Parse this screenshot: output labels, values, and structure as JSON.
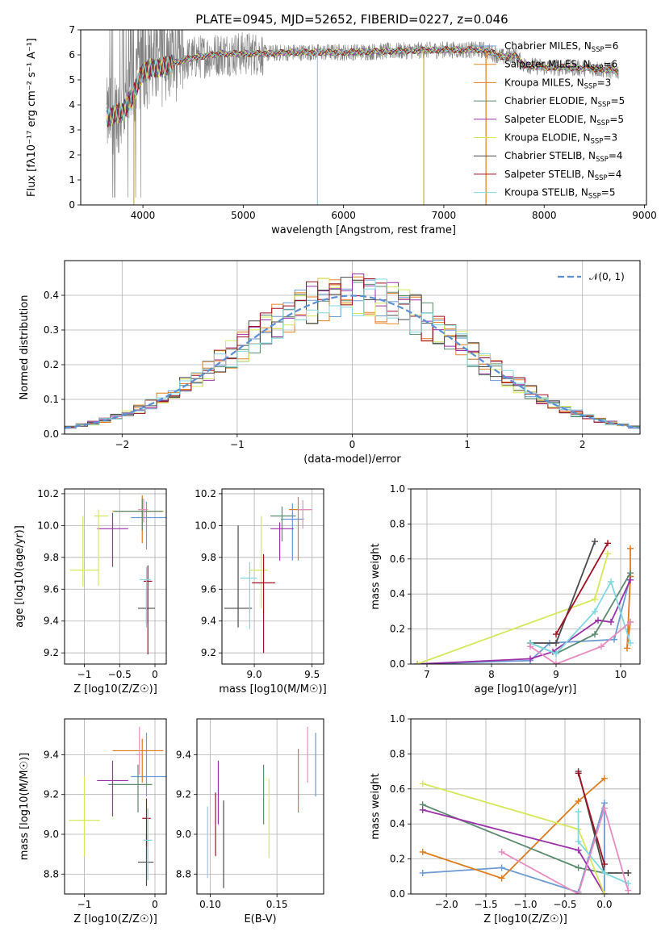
{
  "figure": {
    "title": "PLATE=0945, MJD=52652, FIBERID=0227, z=0.046"
  },
  "series_colors": [
    "#6b9bd2",
    "#e8892a",
    "#e07b1c",
    "#5a8a6e",
    "#9b30a8",
    "#d6e85a",
    "#4a4a4a",
    "#a01020",
    "#7fd8e0",
    "#e88cc0"
  ],
  "chart_data": [
    {
      "id": "spectrum",
      "type": "line",
      "title": "PLATE=0945, MJD=52652, FIBERID=0227, z=0.046",
      "xlabel": "wavelength [Angstrom, rest frame]",
      "ylabel": "Flux [fλ10⁻¹⁷ erg cm⁻² s⁻¹ A⁻¹]",
      "xlim": [
        3380,
        9020
      ],
      "ylim": [
        0,
        7
      ],
      "xticks": [
        4000,
        5000,
        6000,
        7000,
        8000,
        9000
      ],
      "yticks": [
        0,
        1,
        2,
        3,
        4,
        5,
        6,
        7
      ],
      "grid": false,
      "legend_position": "top-right",
      "observed_color": "#808080",
      "x_range_data": [
        3640,
        8740
      ],
      "continuum": {
        "x": [
          3640,
          3700,
          3800,
          3900,
          4000,
          4100,
          4200,
          4400,
          4600,
          4800,
          5000,
          5200,
          5500,
          6000,
          6500,
          7000,
          7400,
          7600,
          7700,
          7800,
          8000,
          8200,
          8500,
          8740
        ],
        "y": [
          3.5,
          3.6,
          3.7,
          4.4,
          5.3,
          5.5,
          5.5,
          5.8,
          5.95,
          6.05,
          6.05,
          6.05,
          6.1,
          6.1,
          6.15,
          6.2,
          6.2,
          5.9,
          6.0,
          5.6,
          5.5,
          5.5,
          5.45,
          5.35
        ]
      },
      "series": [
        {
          "name": "Chabrier MILES, N_SSP=6",
          "label": "Chabrier MILES, N",
          "sub": "SSP",
          "suffix": "=6",
          "color": "#6b9bd2"
        },
        {
          "name": "Salpeter MILES, N_SSP=6",
          "label": "Salpeter MILES, N",
          "sub": "SSP",
          "suffix": "=6",
          "color": "#e8892a"
        },
        {
          "name": "Kroupa MILES, N_SSP=3",
          "label": "Kroupa MILES, N",
          "sub": "SSP",
          "suffix": "=3",
          "color": "#e07b1c"
        },
        {
          "name": "Chabrier ELODIE, N_SSP=5",
          "label": "Chabrier ELODIE, N",
          "sub": "SSP",
          "suffix": "=5",
          "color": "#5a8a6e"
        },
        {
          "name": "Salpeter ELODIE, N_SSP=5",
          "label": "Salpeter ELODIE, N",
          "sub": "SSP",
          "suffix": "=5",
          "color": "#9b30a8"
        },
        {
          "name": "Kroupa ELODIE, N_SSP=3",
          "label": "Kroupa ELODIE, N",
          "sub": "SSP",
          "suffix": "=3",
          "color": "#d6e85a"
        },
        {
          "name": "Chabrier STELIB, N_SSP=4",
          "label": "Chabrier STELIB, N",
          "sub": "SSP",
          "suffix": "=4",
          "color": "#4a4a4a"
        },
        {
          "name": "Salpeter STELIB, N_SSP=4",
          "label": "Salpeter STELIB, N",
          "sub": "SSP",
          "suffix": "=4",
          "color": "#a01020"
        },
        {
          "name": "Kroupa STELIB, N_SSP=5",
          "label": "Kroupa STELIB, N",
          "sub": "SSP",
          "suffix": "=5",
          "color": "#7fd8e0"
        }
      ],
      "model_cutoffs": [
        {
          "x": 3910,
          "color": "#c8b040"
        },
        {
          "x": 5740,
          "color": "#7fd8e0"
        },
        {
          "x": 6800,
          "color": "#c8b040"
        },
        {
          "x": 7420,
          "color": "#e07b1c"
        }
      ]
    },
    {
      "id": "residuals",
      "type": "histogram",
      "xlabel": "(data-model)/error",
      "ylabel": "Normed distribution",
      "xlim": [
        -2.5,
        2.5
      ],
      "ylim": [
        0,
        0.5
      ],
      "xticks": [
        -2,
        -1,
        0,
        1,
        2
      ],
      "yticks": [
        0.0,
        0.1,
        0.2,
        0.3,
        0.4
      ],
      "grid": true,
      "legend_position": "top-right",
      "reference": {
        "label": "𝒩(0, 1)",
        "color": "#5b8fd6",
        "mu": 0,
        "sigma": 1
      },
      "bins": {
        "start": -2.5,
        "width": 0.1,
        "count": 50
      },
      "series_count": 9
    },
    {
      "id": "age_vs_Z",
      "type": "errorbar",
      "xlabel": "Z [log10(Z/Z☉)]",
      "ylabel": "age  [log10(age/yr)]",
      "xlim": [
        -1.28,
        0.16
      ],
      "ylim": [
        9.13,
        10.23
      ],
      "xticks": [
        -1,
        -0.5,
        0
      ],
      "xticklabels": [
        "−1",
        "−0.5",
        "0"
      ],
      "yticks": [
        9.2,
        9.4,
        9.6,
        9.8,
        10.0,
        10.2
      ],
      "grid": true,
      "points": [
        {
          "x": -0.12,
          "xerr": [
            0.22,
            0.28
          ],
          "y": 10.05,
          "yerr": [
            0.2,
            0.1
          ],
          "color": "#6b9bd2"
        },
        {
          "x": -0.18,
          "xerr": [
            0.42,
            0.3
          ],
          "y": 10.09,
          "yerr": [
            0.2,
            0.1
          ],
          "color": "#e07b1c"
        },
        {
          "x": -0.18,
          "xerr": [
            0.4,
            0.28
          ],
          "y": 10.09,
          "yerr": [
            0.12,
            0.08
          ],
          "color": "#5a8a6e"
        },
        {
          "x": -0.6,
          "xerr": [
            0.22,
            0.22
          ],
          "y": 9.98,
          "yerr": [
            0.24,
            0.1
          ],
          "color": "#9b30a8"
        },
        {
          "x": -1.02,
          "xerr": [
            0.18,
            0.22
          ],
          "y": 9.72,
          "yerr": [
            0.1,
            0.34
          ],
          "color": "#d6e85a"
        },
        {
          "x": -0.8,
          "xerr": [
            0.06,
            0.14
          ],
          "y": 10.06,
          "yerr": [
            0.44,
            0.04
          ],
          "color": "#d6e85a"
        },
        {
          "x": -0.16,
          "xerr": [
            0.08,
            0.06
          ],
          "y": 10.1,
          "yerr": [
            0.08,
            0.07
          ],
          "color": "#e88cc0"
        },
        {
          "x": -0.12,
          "xerr": [
            0.12,
            0.12
          ],
          "y": 9.48,
          "yerr": [
            0.1,
            0.12
          ],
          "color": "#4a4a4a"
        },
        {
          "x": -0.1,
          "xerr": [
            0.06,
            0.06
          ],
          "y": 9.65,
          "yerr": [
            0.46,
            0.1
          ],
          "color": "#a01020"
        },
        {
          "x": -0.12,
          "xerr": [
            0.1,
            0.06
          ],
          "y": 9.66,
          "yerr": [
            0.3,
            0.08
          ],
          "color": "#7fd8e0"
        }
      ]
    },
    {
      "id": "age_vs_mass",
      "type": "errorbar",
      "xlabel": "mass [log10(M/M☉)]",
      "ylabel": "",
      "xlim": [
        8.72,
        9.6
      ],
      "ylim": [
        9.13,
        10.23
      ],
      "xticks": [
        9.0,
        9.5
      ],
      "yticks": [
        9.2,
        9.4,
        9.6,
        9.8,
        10.0,
        10.2
      ],
      "grid": true,
      "points": [
        {
          "x": 9.33,
          "xerr": [
            0.1,
            0.1
          ],
          "y": 10.04,
          "yerr": [
            0.26,
            0.1
          ],
          "color": "#6b9bd2"
        },
        {
          "x": 9.38,
          "xerr": [
            0.08,
            0.1
          ],
          "y": 10.1,
          "yerr": [
            0.32,
            0.08
          ],
          "color": "#e07b1c"
        },
        {
          "x": 9.24,
          "xerr": [
            0.1,
            0.12
          ],
          "y": 10.06,
          "yerr": [
            0.16,
            0.06
          ],
          "color": "#5a8a6e"
        },
        {
          "x": 9.22,
          "xerr": [
            0.08,
            0.12
          ],
          "y": 9.98,
          "yerr": [
            0.2,
            0.04
          ],
          "color": "#9b30a8"
        },
        {
          "x": 9.06,
          "xerr": [
            0.1,
            0.06
          ],
          "y": 9.72,
          "yerr": [
            0.24,
            0.34
          ],
          "color": "#d6e85a"
        },
        {
          "x": 9.42,
          "xerr": [
            0.04,
            0.08
          ],
          "y": 10.1,
          "yerr": [
            0.12,
            0.06
          ],
          "color": "#e88cc0"
        },
        {
          "x": 8.86,
          "xerr": [
            0.12,
            0.12
          ],
          "y": 9.48,
          "yerr": [
            0.12,
            0.52
          ],
          "color": "#4a4a4a"
        },
        {
          "x": 9.08,
          "xerr": [
            0.1,
            0.1
          ],
          "y": 9.64,
          "yerr": [
            0.44,
            0.18
          ],
          "color": "#a01020"
        },
        {
          "x": 8.96,
          "xerr": [
            0.08,
            0.06
          ],
          "y": 9.67,
          "yerr": [
            0.32,
            0.1
          ],
          "color": "#7fd8e0"
        }
      ]
    },
    {
      "id": "mass_weight_vs_age",
      "type": "line",
      "xlabel": "age  [log10(age/yr)]",
      "ylabel": "mass weight",
      "xlim": [
        6.75,
        10.3
      ],
      "ylim": [
        0,
        1.0
      ],
      "xticks": [
        7,
        8,
        9,
        10
      ],
      "yticks": [
        0.0,
        0.2,
        0.4,
        0.6,
        0.8,
        1.0
      ],
      "grid": true,
      "series": [
        {
          "color": "#6b9bd2",
          "x": [
            6.85,
            8.6,
            8.9,
            9.9,
            10.15
          ],
          "y": [
            0.0,
            0.02,
            0.12,
            0.14,
            0.5
          ]
        },
        {
          "color": "#e07b1c",
          "x": [
            10.15,
            10.15,
            10.1,
            10.15
          ],
          "y": [
            0.66,
            0.5,
            0.09,
            0.24
          ]
        },
        {
          "color": "#5a8a6e",
          "x": [
            8.6,
            9.0,
            9.6,
            10.15
          ],
          "y": [
            0.12,
            0.06,
            0.17,
            0.52
          ]
        },
        {
          "color": "#9b30a8",
          "x": [
            6.85,
            8.6,
            8.95,
            9.65,
            9.85,
            10.15
          ],
          "y": [
            0.0,
            0.03,
            0.07,
            0.25,
            0.24,
            0.48
          ]
        },
        {
          "color": "#d6e85a",
          "x": [
            6.85,
            9.6,
            9.8
          ],
          "y": [
            0.0,
            0.37,
            0.63
          ]
        },
        {
          "color": "#4a4a4a",
          "x": [
            8.6,
            9.0,
            9.6
          ],
          "y": [
            0.12,
            0.12,
            0.7
          ]
        },
        {
          "color": "#a01020",
          "x": [
            9.0,
            9.8
          ],
          "y": [
            0.17,
            0.69
          ]
        },
        {
          "color": "#7fd8e0",
          "x": [
            8.6,
            9.0,
            9.6,
            9.85,
            10.15
          ],
          "y": [
            0.12,
            0.06,
            0.3,
            0.47,
            0.12
          ]
        },
        {
          "color": "#e88cc0",
          "x": [
            8.6,
            9.0,
            9.7,
            10.15
          ],
          "y": [
            0.1,
            0.0,
            0.1,
            0.24
          ]
        }
      ]
    },
    {
      "id": "mass_vs_Z",
      "type": "errorbar",
      "xlabel": "Z [log10(Z/Z☉)]",
      "ylabel": "mass [log10(M/M☉)]",
      "xlim": [
        -1.28,
        0.16
      ],
      "ylim": [
        8.7,
        9.58
      ],
      "xticks": [
        -1,
        0
      ],
      "xticklabels": [
        "−1",
        "0"
      ],
      "yticks": [
        8.8,
        9.0,
        9.2,
        9.4
      ],
      "grid": true,
      "points": [
        {
          "x": -0.12,
          "xerr": [
            0.22,
            0.3
          ],
          "y": 9.29,
          "yerr": [
            0.1,
            0.22
          ],
          "color": "#6b9bd2"
        },
        {
          "x": -0.18,
          "xerr": [
            0.42,
            0.3
          ],
          "y": 9.42,
          "yerr": [
            0.16,
            0.06
          ],
          "color": "#e07b1c"
        },
        {
          "x": -0.24,
          "xerr": [
            0.42,
            0.2
          ],
          "y": 9.25,
          "yerr": [
            0.14,
            0.1
          ],
          "color": "#5a8a6e"
        },
        {
          "x": -0.6,
          "xerr": [
            0.22,
            0.22
          ],
          "y": 9.27,
          "yerr": [
            0.18,
            0.1
          ],
          "color": "#9b30a8"
        },
        {
          "x": -1.0,
          "xerr": [
            0.22,
            0.22
          ],
          "y": 9.07,
          "yerr": [
            0.18,
            0.22
          ],
          "color": "#d6e85a"
        },
        {
          "x": -0.22,
          "xerr": [
            0.04,
            0.04
          ],
          "y": 9.4,
          "yerr": [
            0.1,
            0.14
          ],
          "color": "#e88cc0"
        },
        {
          "x": -0.12,
          "xerr": [
            0.12,
            0.1
          ],
          "y": 8.86,
          "yerr": [
            0.12,
            0.14
          ],
          "color": "#4a4a4a"
        },
        {
          "x": -0.12,
          "xerr": [
            0.06,
            0.06
          ],
          "y": 9.08,
          "yerr": [
            0.14,
            0.1
          ],
          "color": "#a01020"
        },
        {
          "x": -0.1,
          "xerr": [
            0.06,
            0.06
          ],
          "y": 8.97,
          "yerr": [
            0.2,
            0.16
          ],
          "color": "#7fd8e0"
        }
      ]
    },
    {
      "id": "mass_vs_EBV",
      "type": "errorbar",
      "xlabel": "E(B-V)",
      "ylabel": "",
      "xlim": [
        0.09,
        0.185
      ],
      "ylim": [
        8.7,
        9.58
      ],
      "xticks": [
        0.1,
        0.15
      ],
      "xticklabels": [
        "0.10",
        "0.15"
      ],
      "yticks": [
        8.8,
        9.0,
        9.2,
        9.4
      ],
      "grid": true,
      "points": [
        {
          "x": 0.179,
          "y": 9.35,
          "yerr": [
            0.16,
            0.16
          ],
          "color": "#6b9bd2"
        },
        {
          "x": 0.166,
          "y": 9.27,
          "yerr": [
            0.16,
            0.16
          ],
          "color": "#e07b1c"
        },
        {
          "x": 0.14,
          "y": 9.2,
          "yerr": [
            0.15,
            0.15
          ],
          "color": "#5a8a6e"
        },
        {
          "x": 0.106,
          "y": 9.21,
          "yerr": [
            0.16,
            0.16
          ],
          "color": "#9b30a8"
        },
        {
          "x": 0.144,
          "y": 9.08,
          "yerr": [
            0.2,
            0.2
          ],
          "color": "#d6e85a"
        },
        {
          "x": 0.173,
          "y": 9.4,
          "yerr": [
            0.14,
            0.14
          ],
          "color": "#e88cc0"
        },
        {
          "x": 0.11,
          "y": 8.95,
          "yerr": [
            0.22,
            0.22
          ],
          "color": "#4a4a4a"
        },
        {
          "x": 0.104,
          "y": 9.05,
          "yerr": [
            0.16,
            0.16
          ],
          "color": "#a01020"
        },
        {
          "x": 0.098,
          "y": 8.96,
          "yerr": [
            0.18,
            0.18
          ],
          "color": "#7fd8e0"
        }
      ]
    },
    {
      "id": "mass_weight_vs_Z",
      "type": "line",
      "xlabel": "Z [log10(Z/Z☉)]",
      "ylabel": "mass weight",
      "xlim": [
        -2.45,
        0.45
      ],
      "ylim": [
        0,
        1.0
      ],
      "xticks": [
        -2.0,
        -1.5,
        -1.0,
        -0.5,
        0.0
      ],
      "xticklabels": [
        "−2.0",
        "−1.5",
        "−1.0",
        "−0.5",
        "0.0"
      ],
      "yticks": [
        0.0,
        0.2,
        0.4,
        0.6,
        0.8,
        1.0
      ],
      "grid": true,
      "series": [
        {
          "color": "#6b9bd2",
          "x": [
            -2.3,
            -1.3,
            -0.33,
            0.0,
            0.0
          ],
          "y": [
            0.12,
            0.15,
            0.01,
            0.52,
            0.0
          ]
        },
        {
          "color": "#e07b1c",
          "x": [
            -2.3,
            -1.3,
            -0.33,
            0.0
          ],
          "y": [
            0.24,
            0.09,
            0.53,
            0.66
          ]
        },
        {
          "color": "#5a8a6e",
          "x": [
            -2.3,
            -0.33,
            0.0
          ],
          "y": [
            0.51,
            0.15,
            0.12
          ]
        },
        {
          "color": "#9b30a8",
          "x": [
            -2.3,
            -0.33,
            0.0
          ],
          "y": [
            0.48,
            0.25,
            0.0
          ]
        },
        {
          "color": "#d6e85a",
          "x": [
            -2.3,
            -0.33,
            0.0
          ],
          "y": [
            0.63,
            0.37,
            0.0
          ]
        },
        {
          "color": "#4a4a4a",
          "x": [
            -0.33,
            0.0,
            0.3
          ],
          "y": [
            0.7,
            0.12,
            0.12
          ]
        },
        {
          "color": "#a01020",
          "x": [
            -0.33,
            0.0
          ],
          "y": [
            0.69,
            0.17
          ]
        },
        {
          "color": "#7fd8e0",
          "x": [
            -0.33,
            -0.33,
            0.0,
            0.3
          ],
          "y": [
            0.47,
            0.3,
            0.12,
            0.06
          ]
        },
        {
          "color": "#e88cc0",
          "x": [
            -1.3,
            -0.33,
            0.0,
            0.3
          ],
          "y": [
            0.24,
            0.0,
            0.49,
            0.02
          ]
        }
      ]
    }
  ]
}
